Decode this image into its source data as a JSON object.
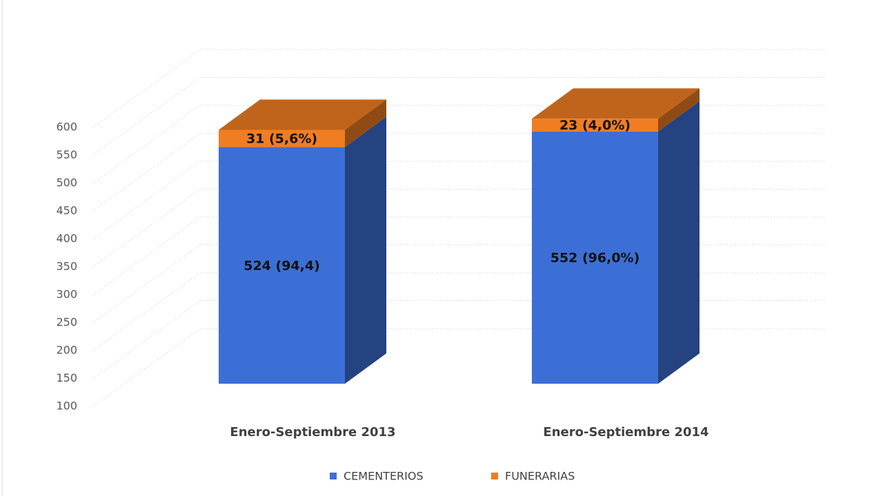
{
  "chart_data": {
    "type": "bar3d_stacked",
    "categories": [
      "Enero-Septiembre 2013",
      "Enero-Septiembre 2014"
    ],
    "series": [
      {
        "name": "CEMENTERIOS",
        "color": "#3c6fd6",
        "values": [
          524,
          552
        ],
        "value_labels": [
          "524 (94,4)",
          "552 (96,0%)"
        ]
      },
      {
        "name": "FUNERARIAS",
        "color": "#f07d22",
        "values": [
          31,
          23
        ],
        "value_labels": [
          "31 (5,6%)",
          "23 (4,0%)"
        ]
      }
    ],
    "ylim": [
      100,
      600
    ],
    "yticks": [
      100,
      150,
      200,
      250,
      300,
      350,
      400,
      450,
      500,
      550,
      600
    ],
    "grid": true
  }
}
